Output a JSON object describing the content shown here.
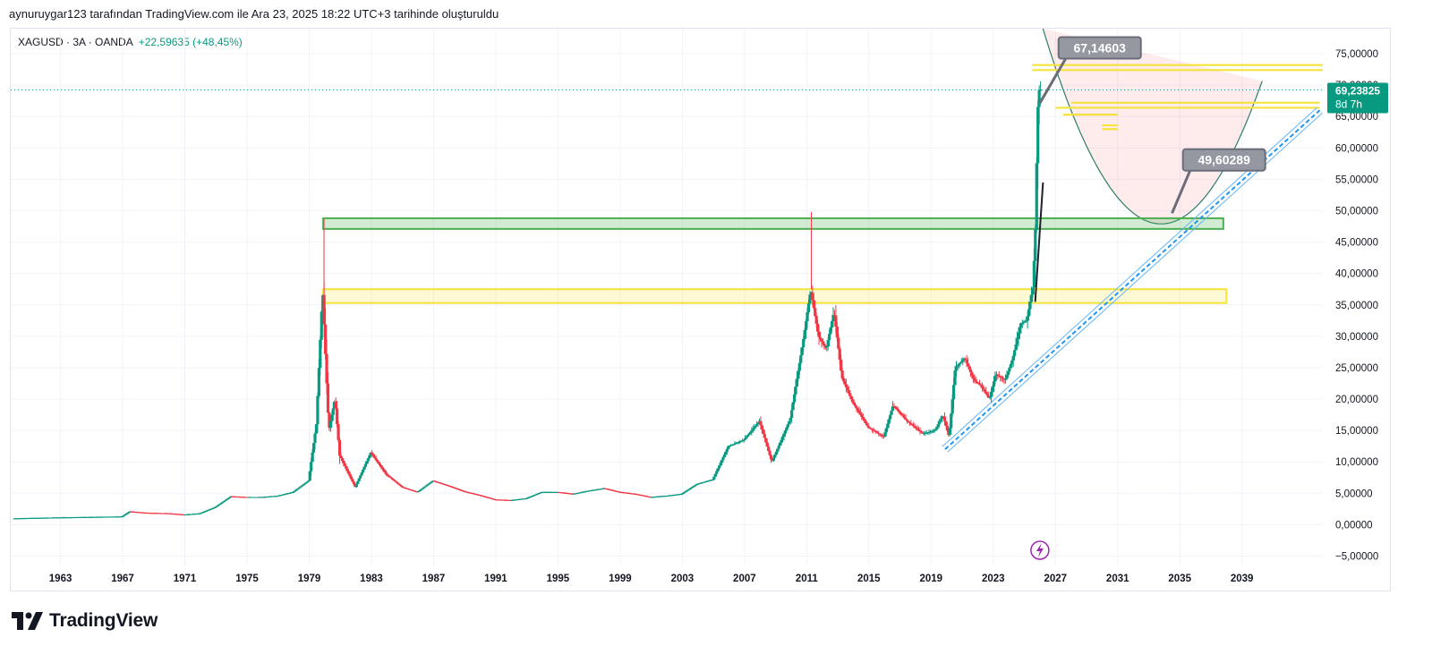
{
  "header": {
    "text": "aynuruygar123 tarafından TradingView.com ile Ara 23, 2025 18:22 UTC+3 tarihinde oluşturuldu"
  },
  "legend": {
    "symbol": "XAGUSD · 3A · OANDA",
    "change": "+22,59635 (+48,45%)"
  },
  "brand": {
    "name": "TradingView"
  },
  "colors": {
    "up": "#089981",
    "down": "#f23645",
    "zone_green": "#4caf50",
    "zone_yellow": "#f5e33b",
    "price_tag": "#089981",
    "callout": "#9598a1"
  },
  "current_price": {
    "value": "69,23825",
    "countdown": "8d 7h",
    "level": 69.23825
  },
  "annotations": [
    {
      "text": "67,14603",
      "level": 67.14603
    },
    {
      "text": "49,60289",
      "level": 49.60289
    }
  ],
  "icons": {
    "lightning": "lightning-icon",
    "logo": "tradingview-logo-icon"
  },
  "chart_data": {
    "type": "candlestick",
    "symbol": "XAGUSD",
    "interval": "3A",
    "x_ticks": [
      "1963",
      "1967",
      "1971",
      "1975",
      "1979",
      "1983",
      "1987",
      "1991",
      "1995",
      "1999",
      "2003",
      "2007",
      "2011",
      "2015",
      "2019",
      "2023",
      "2027",
      "2031",
      "2035",
      "2039"
    ],
    "y_ticks": [
      "75,00000",
      "70,00000",
      "65,00000",
      "60,00000",
      "55,00000",
      "50,00000",
      "45,00000",
      "40,00000",
      "35,00000",
      "30,00000",
      "25,00000",
      "20,00000",
      "15,00000",
      "10,00000",
      "5,00000",
      "0,00000",
      "−5,00000"
    ],
    "ylim": [
      -6.5,
      79
    ],
    "xlim": [
      1959.8,
      2044.2
    ],
    "price_path": [
      [
        1960.0,
        1.0
      ],
      [
        1963.0,
        1.15
      ],
      [
        1967.0,
        1.3
      ],
      [
        1967.5,
        2.1
      ],
      [
        1968.5,
        1.9
      ],
      [
        1970.0,
        1.8
      ],
      [
        1971.0,
        1.6
      ],
      [
        1972.0,
        1.8
      ],
      [
        1973.0,
        2.8
      ],
      [
        1974.0,
        4.5
      ],
      [
        1975.0,
        4.4
      ],
      [
        1976.0,
        4.4
      ],
      [
        1977.0,
        4.6
      ],
      [
        1978.0,
        5.2
      ],
      [
        1979.0,
        7.0
      ],
      [
        1979.5,
        16.0
      ],
      [
        1979.9,
        37.5
      ],
      [
        1980.3,
        15.0
      ],
      [
        1980.7,
        20.0
      ],
      [
        1981.0,
        11.0
      ],
      [
        1982.0,
        6.0
      ],
      [
        1983.0,
        11.5
      ],
      [
        1984.0,
        8.0
      ],
      [
        1985.0,
        6.0
      ],
      [
        1986.0,
        5.2
      ],
      [
        1987.0,
        7.0
      ],
      [
        1988.0,
        6.2
      ],
      [
        1989.0,
        5.3
      ],
      [
        1990.0,
        4.7
      ],
      [
        1991.0,
        4.0
      ],
      [
        1992.0,
        3.9
      ],
      [
        1993.0,
        4.2
      ],
      [
        1994.0,
        5.2
      ],
      [
        1995.0,
        5.2
      ],
      [
        1996.0,
        4.9
      ],
      [
        1997.0,
        5.4
      ],
      [
        1998.0,
        5.8
      ],
      [
        1999.0,
        5.2
      ],
      [
        2000.0,
        4.9
      ],
      [
        2001.0,
        4.4
      ],
      [
        2002.0,
        4.6
      ],
      [
        2003.0,
        4.9
      ],
      [
        2004.0,
        6.5
      ],
      [
        2005.0,
        7.2
      ],
      [
        2006.0,
        12.5
      ],
      [
        2007.0,
        13.5
      ],
      [
        2008.0,
        16.5
      ],
      [
        2008.8,
        10.0
      ],
      [
        2009.5,
        14.0
      ],
      [
        2010.0,
        17.0
      ],
      [
        2010.8,
        29.0
      ],
      [
        2011.3,
        37.5
      ],
      [
        2011.8,
        30.0
      ],
      [
        2012.3,
        28.0
      ],
      [
        2012.8,
        34.0
      ],
      [
        2013.3,
        23.5
      ],
      [
        2014.0,
        19.5
      ],
      [
        2015.0,
        15.5
      ],
      [
        2016.0,
        14.0
      ],
      [
        2016.6,
        19.0
      ],
      [
        2017.5,
        16.5
      ],
      [
        2018.5,
        14.5
      ],
      [
        2019.3,
        15.0
      ],
      [
        2019.8,
        17.5
      ],
      [
        2020.2,
        14.0
      ],
      [
        2020.6,
        25.0
      ],
      [
        2021.2,
        26.5
      ],
      [
        2021.8,
        23.0
      ],
      [
        2022.3,
        22.0
      ],
      [
        2022.8,
        20.0
      ],
      [
        2023.2,
        24.0
      ],
      [
        2023.8,
        23.0
      ],
      [
        2024.3,
        26.5
      ],
      [
        2024.8,
        32.0
      ],
      [
        2025.2,
        32.5
      ],
      [
        2025.6,
        38.0
      ],
      [
        2025.75,
        47.0
      ],
      [
        2025.9,
        66.0
      ],
      [
        2026.0,
        69.23825
      ]
    ],
    "zones": [
      {
        "color": "green",
        "y_top": 48.8,
        "y_bottom": 47.1,
        "x_start": 1979.9,
        "x_end": 2037.8
      },
      {
        "color": "yellow",
        "y_top": 37.5,
        "y_bottom": 35.3,
        "x_start": 1979.9,
        "x_end": 2038.0
      }
    ],
    "horizontal_lines": [
      72.4,
      73.2,
      67.2,
      66.4,
      65.3,
      63.6,
      63.0
    ],
    "trend_channel": {
      "x_start": 2019.9,
      "y_start": 12.0,
      "x_end": 2044.0,
      "y_end": 66.0
    },
    "parabola": {
      "vertex_x": 2033.8,
      "vertex_y": 47.9,
      "left_x_top": 2026.2,
      "right_x_top": 2040.3,
      "y_top": 79.0
    },
    "wick_high_1980": 48.7,
    "wick_high_2011": 49.8
  }
}
